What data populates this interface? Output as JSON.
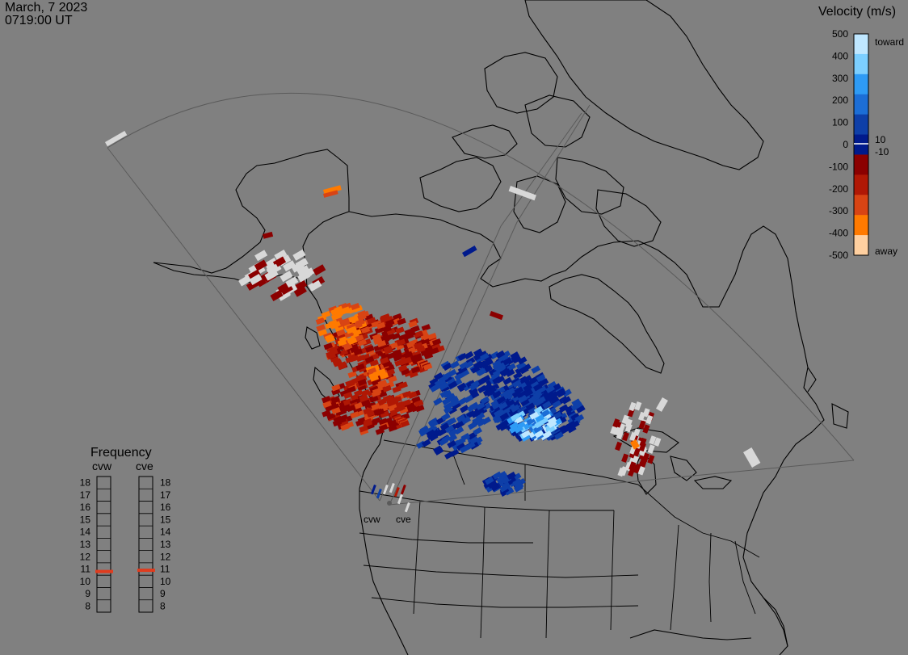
{
  "header": {
    "date": "March, 7 2023",
    "time": "0719:00 UT"
  },
  "legend": {
    "title": "Velocity (m/s)",
    "ticks": [
      "500",
      "400",
      "300",
      "200",
      "100",
      "0",
      "-100",
      "-200",
      "-300",
      "-400",
      "-500"
    ],
    "inner_labels": {
      "pos": "10",
      "neg": "-10"
    },
    "toward_label": "toward",
    "away_label": "away",
    "colors": [
      "#bfe7ff",
      "#7ccfff",
      "#2e9bf5",
      "#1c6ed6",
      "#0e3fa8",
      "#001a8c",
      "#8b0000",
      "#b01805",
      "#d84414",
      "#ff7a00",
      "#ffd0a0"
    ]
  },
  "frequency": {
    "title": "Frequency",
    "left_label": "cvw",
    "right_label": "cve",
    "ticks": [
      "18",
      "17",
      "16",
      "15",
      "14",
      "13",
      "12",
      "11",
      "10",
      "9",
      "8"
    ],
    "cvw_mhz": 10.8,
    "cve_mhz": 10.9,
    "marker_color": "#e03c1e"
  },
  "radars": {
    "cvw_label": "cvw",
    "cve_label": "cve"
  },
  "map": {
    "fov_color": "#5a5a5a",
    "ground_scatter_color": "#d8d8d8"
  }
}
